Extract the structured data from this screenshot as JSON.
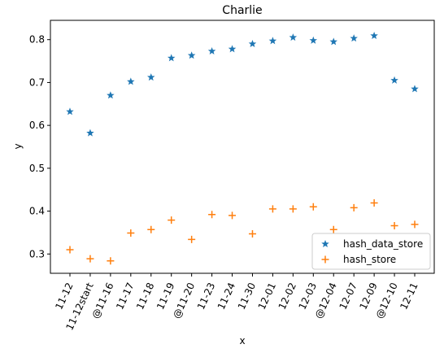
{
  "chart_data": {
    "type": "scatter",
    "title": "Charlie",
    "xlabel": "x",
    "ylabel": "y",
    "categories": [
      "11-12",
      "11-12start",
      "@11-16",
      "11-17",
      "11-18",
      "11-19",
      "@11-20",
      "11-23",
      "11-24",
      "11-30",
      "12-01",
      "12-02",
      "12-03",
      "@12-04",
      "12-07",
      "12-09",
      "@12-10",
      "12-11"
    ],
    "ylim": [
      0.255,
      0.845
    ],
    "yticks": [
      "0.3",
      "0.4",
      "0.5",
      "0.6",
      "0.7",
      "0.8"
    ],
    "grid": false,
    "legend_position": "lower-right",
    "series": [
      {
        "name": "hash_data_store",
        "marker": "star",
        "color": "#1f77b4",
        "values": [
          0.632,
          0.582,
          0.67,
          0.702,
          0.712,
          0.757,
          0.763,
          0.773,
          0.778,
          0.79,
          0.797,
          0.805,
          0.798,
          0.795,
          0.803,
          0.809,
          0.705,
          0.685
        ]
      },
      {
        "name": "hash_store",
        "marker": "plus",
        "color": "#ff7f0e",
        "values": [
          0.31,
          0.289,
          0.284,
          0.349,
          0.357,
          0.379,
          0.334,
          0.392,
          0.39,
          0.347,
          0.405,
          0.405,
          0.41,
          0.357,
          0.408,
          0.419,
          0.366,
          0.369
        ]
      }
    ]
  }
}
